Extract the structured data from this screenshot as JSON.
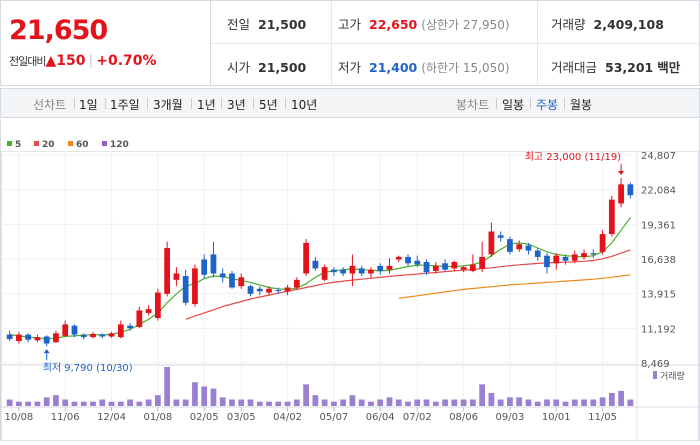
{
  "summary": {
    "current_price": "21,650",
    "change_label": "전일대비",
    "change_arrow": "▲",
    "change_value": "150",
    "change_rate": "+0.70%",
    "prev_close_label": "전일",
    "prev_close": "21,500",
    "high_label": "고가",
    "high": "22,650",
    "upper_limit": "(상한가 27,950)",
    "volume_label": "거래량",
    "volume": "2,409,108",
    "open_label": "시가",
    "open": "21,500",
    "low_label": "저가",
    "low": "21,400",
    "lower_limit": "(하한가 15,050)",
    "trade_value_label": "거래대금",
    "trade_value": "53,201",
    "trade_value_unit": "백만"
  },
  "tabs": {
    "line_label": "선차트",
    "periods": [
      "1일",
      "1주일",
      "3개월",
      "1년",
      "3년",
      "5년",
      "10년"
    ],
    "candle_label": "봉차트",
    "candle_periods": [
      "일봉",
      "주봉",
      "월봉"
    ],
    "active": "주봉"
  },
  "colors": {
    "up": "#e3131b",
    "down": "#1e63c8",
    "ma5": "#4caf2a",
    "ma20": "#e84a4a",
    "ma60": "#ef8a1a",
    "ma120": "#8e5fc2",
    "volume": "#9b7fd1"
  },
  "chart_data": {
    "type": "candlestick",
    "legend": [
      "5",
      "20",
      "60",
      "120"
    ],
    "legend_placement": "top-left",
    "y_ticks": [
      24807,
      22084,
      19361,
      16638,
      13915,
      11192,
      8469
    ],
    "y_tick_labels": [
      "24,807",
      "22,084",
      "19,361",
      "16,638",
      "13,915",
      "11,192",
      "8,469"
    ],
    "ylim": [
      8469,
      24807
    ],
    "x_labels": [
      "10/08",
      "11/06",
      "12/04",
      "01/08",
      "02/05",
      "03/05",
      "04/02",
      "05/07",
      "06/04",
      "07/02",
      "08/06",
      "09/03",
      "10/01",
      "11/05"
    ],
    "x_label_index": [
      1,
      6,
      11,
      16,
      21,
      25,
      30,
      35,
      40,
      44,
      49,
      54,
      59,
      64
    ],
    "high_annotation": {
      "text": "최고 23,000 (11/19)",
      "index": 66,
      "value": 23000
    },
    "low_annotation": {
      "text": "최저 9,790 (10/30)",
      "index": 4,
      "value": 9790
    },
    "volume_label": "거래량",
    "candles": [
      {
        "o": 10700,
        "c": 10350,
        "h": 11000,
        "l": 10200
      },
      {
        "o": 10200,
        "c": 10700,
        "h": 10900,
        "l": 10000
      },
      {
        "o": 10700,
        "c": 10300,
        "h": 10800,
        "l": 10100
      },
      {
        "o": 10250,
        "c": 10500,
        "h": 10700,
        "l": 10100
      },
      {
        "o": 10550,
        "c": 10000,
        "h": 10650,
        "l": 9790
      },
      {
        "o": 10100,
        "c": 10800,
        "h": 11000,
        "l": 10050
      },
      {
        "o": 10600,
        "c": 11500,
        "h": 11800,
        "l": 10500
      },
      {
        "o": 11400,
        "c": 10700,
        "h": 11500,
        "l": 10500
      },
      {
        "o": 10700,
        "c": 10500,
        "h": 10800,
        "l": 10300
      },
      {
        "o": 10500,
        "c": 10750,
        "h": 10900,
        "l": 10400
      },
      {
        "o": 10700,
        "c": 10550,
        "h": 10800,
        "l": 10400
      },
      {
        "o": 10550,
        "c": 10800,
        "h": 10900,
        "l": 10450
      },
      {
        "o": 10500,
        "c": 11500,
        "h": 11800,
        "l": 10400
      },
      {
        "o": 11400,
        "c": 11200,
        "h": 11600,
        "l": 11000
      },
      {
        "o": 11300,
        "c": 12600,
        "h": 12900,
        "l": 11200
      },
      {
        "o": 12400,
        "c": 12700,
        "h": 13000,
        "l": 12200
      },
      {
        "o": 12000,
        "c": 14000,
        "h": 14300,
        "l": 11800
      },
      {
        "o": 13900,
        "c": 17500,
        "h": 18000,
        "l": 13700
      },
      {
        "o": 15000,
        "c": 15500,
        "h": 16000,
        "l": 14500
      },
      {
        "o": 15300,
        "c": 13200,
        "h": 15800,
        "l": 13000
      },
      {
        "o": 13100,
        "c": 15900,
        "h": 16200,
        "l": 12900
      },
      {
        "o": 16600,
        "c": 15400,
        "h": 17000,
        "l": 15100
      },
      {
        "o": 17000,
        "c": 15500,
        "h": 18000,
        "l": 15200
      },
      {
        "o": 15500,
        "c": 15200,
        "h": 15900,
        "l": 14800
      },
      {
        "o": 15500,
        "c": 14400,
        "h": 15700,
        "l": 14300
      },
      {
        "o": 14500,
        "c": 15200,
        "h": 15500,
        "l": 14300
      },
      {
        "o": 14500,
        "c": 13900,
        "h": 14600,
        "l": 13700
      },
      {
        "o": 14300,
        "c": 14100,
        "h": 14500,
        "l": 13800
      },
      {
        "o": 14000,
        "c": 14300,
        "h": 14500,
        "l": 13800
      },
      {
        "o": 14200,
        "c": 14150,
        "h": 14400,
        "l": 13900
      },
      {
        "o": 14100,
        "c": 14400,
        "h": 14600,
        "l": 13800
      },
      {
        "o": 14400,
        "c": 15000,
        "h": 15200,
        "l": 14200
      },
      {
        "o": 15500,
        "c": 17900,
        "h": 18200,
        "l": 15300
      },
      {
        "o": 16500,
        "c": 15900,
        "h": 16800,
        "l": 15700
      },
      {
        "o": 15000,
        "c": 16000,
        "h": 16200,
        "l": 14900
      },
      {
        "o": 15800,
        "c": 15600,
        "h": 16000,
        "l": 15300
      },
      {
        "o": 15800,
        "c": 15500,
        "h": 16000,
        "l": 15300
      },
      {
        "o": 15500,
        "c": 16100,
        "h": 17000,
        "l": 14500
      },
      {
        "o": 15900,
        "c": 15500,
        "h": 16100,
        "l": 15300
      },
      {
        "o": 15500,
        "c": 15800,
        "h": 16000,
        "l": 15100
      },
      {
        "o": 16100,
        "c": 15700,
        "h": 16300,
        "l": 15400
      },
      {
        "o": 15800,
        "c": 16100,
        "h": 16700,
        "l": 15500
      },
      {
        "o": 16600,
        "c": 16800,
        "h": 16900,
        "l": 16400
      },
      {
        "o": 16800,
        "c": 16300,
        "h": 17000,
        "l": 16100
      },
      {
        "o": 16500,
        "c": 16200,
        "h": 16900,
        "l": 16000
      },
      {
        "o": 16400,
        "c": 15600,
        "h": 16600,
        "l": 15400
      },
      {
        "o": 15700,
        "c": 16100,
        "h": 16400,
        "l": 15500
      },
      {
        "o": 16300,
        "c": 15800,
        "h": 16600,
        "l": 15600
      },
      {
        "o": 15900,
        "c": 16400,
        "h": 16500,
        "l": 15700
      },
      {
        "o": 15800,
        "c": 16000,
        "h": 16100,
        "l": 15600
      },
      {
        "o": 15700,
        "c": 16200,
        "h": 17000,
        "l": 15600
      },
      {
        "o": 15900,
        "c": 16800,
        "h": 18000,
        "l": 15600
      },
      {
        "o": 17000,
        "c": 18800,
        "h": 19500,
        "l": 16800
      },
      {
        "o": 18500,
        "c": 18300,
        "h": 18800,
        "l": 18000
      },
      {
        "o": 18200,
        "c": 17200,
        "h": 18400,
        "l": 17000
      },
      {
        "o": 17400,
        "c": 17800,
        "h": 18100,
        "l": 17200
      },
      {
        "o": 17700,
        "c": 17300,
        "h": 17900,
        "l": 17000
      },
      {
        "o": 17300,
        "c": 16800,
        "h": 17500,
        "l": 16500
      },
      {
        "o": 16900,
        "c": 16000,
        "h": 17100,
        "l": 15500
      },
      {
        "o": 16300,
        "c": 16900,
        "h": 17100,
        "l": 15800
      },
      {
        "o": 16800,
        "c": 16500,
        "h": 17000,
        "l": 16200
      },
      {
        "o": 16500,
        "c": 17000,
        "h": 17300,
        "l": 16300
      },
      {
        "o": 16800,
        "c": 17100,
        "h": 17400,
        "l": 16600
      },
      {
        "o": 17100,
        "c": 17000,
        "h": 17400,
        "l": 16700
      },
      {
        "o": 17200,
        "c": 18600,
        "h": 18900,
        "l": 17000
      },
      {
        "o": 18600,
        "c": 21300,
        "h": 21600,
        "l": 18400
      },
      {
        "o": 21000,
        "c": 22500,
        "h": 23000,
        "l": 20700
      },
      {
        "o": 22500,
        "c": 21650,
        "h": 22650,
        "l": 21400
      }
    ],
    "volumes": [
      3,
      2,
      2,
      2,
      4,
      5,
      3,
      2,
      2,
      2,
      3,
      2,
      2,
      3,
      2,
      3,
      5,
      18,
      3,
      3,
      11,
      9,
      8,
      4,
      3,
      3,
      3,
      2,
      2,
      2,
      2,
      3,
      10,
      5,
      3,
      2,
      3,
      5,
      3,
      2,
      3,
      4,
      3,
      2,
      3,
      3,
      2,
      3,
      3,
      3,
      3,
      10,
      6,
      3,
      4,
      4,
      3,
      2,
      3,
      3,
      2,
      3,
      3,
      3,
      4,
      6,
      7,
      3
    ],
    "ma5": [
      10700,
      10600,
      10500,
      10450,
      10380,
      10420,
      10560,
      10600,
      10650,
      10700,
      10680,
      10700,
      10900,
      11100,
      11500,
      11900,
      12400,
      13200,
      13900,
      14500,
      14700,
      15100,
      15300,
      15250,
      15100,
      14950,
      14800,
      14600,
      14400,
      14300,
      14250,
      14350,
      14700,
      15200,
      15600,
      15700,
      15800,
      15850,
      15800,
      15750,
      15700,
      15750,
      15900,
      16050,
      16150,
      16150,
      16100,
      16050,
      16050,
      16100,
      16200,
      16400,
      16900,
      17400,
      17800,
      17900,
      17800,
      17500,
      17200,
      17000,
      16900,
      16850,
      16800,
      16900,
      17200,
      17900,
      18900,
      19900
    ],
    "ma20": [
      null,
      null,
      null,
      null,
      null,
      null,
      null,
      null,
      null,
      null,
      null,
      null,
      null,
      null,
      null,
      null,
      null,
      null,
      null,
      11900,
      12150,
      12400,
      12650,
      12900,
      13100,
      13300,
      13500,
      13650,
      13800,
      13950,
      14100,
      14250,
      14400,
      14550,
      14700,
      14800,
      14900,
      14980,
      15050,
      15130,
      15200,
      15270,
      15340,
      15400,
      15460,
      15520,
      15580,
      15640,
      15700,
      15760,
      15820,
      15880,
      15950,
      16030,
      16110,
      16180,
      16240,
      16290,
      16330,
      16360,
      16390,
      16420,
      16460,
      16520,
      16650,
      16850,
      17100,
      17350
    ],
    "ma60": [
      null,
      null,
      null,
      null,
      null,
      null,
      null,
      null,
      null,
      null,
      null,
      null,
      null,
      null,
      null,
      null,
      null,
      null,
      null,
      null,
      null,
      null,
      null,
      null,
      null,
      null,
      null,
      null,
      null,
      null,
      null,
      null,
      null,
      null,
      null,
      null,
      null,
      null,
      null,
      null,
      null,
      null,
      13550,
      13650,
      13750,
      13850,
      13950,
      14050,
      14150,
      14250,
      14320,
      14390,
      14460,
      14530,
      14600,
      14650,
      14700,
      14750,
      14800,
      14850,
      14900,
      14950,
      15000,
      15050,
      15120,
      15200,
      15300,
      15400
    ]
  }
}
